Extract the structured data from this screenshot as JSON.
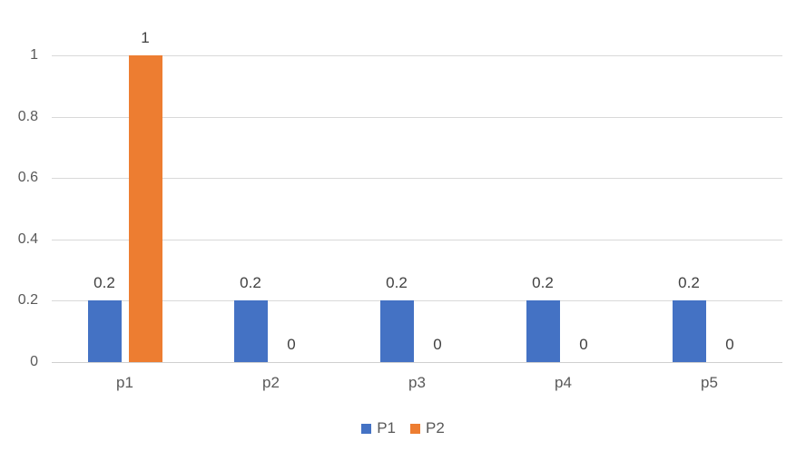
{
  "chart_data": {
    "type": "bar",
    "title": "",
    "xlabel": "",
    "ylabel": "",
    "categories": [
      "p1",
      "p2",
      "p3",
      "p4",
      "p5"
    ],
    "series": [
      {
        "name": "P1",
        "color": "#4472C4",
        "values": [
          0.2,
          0.2,
          0.2,
          0.2,
          0.2
        ],
        "data_labels": [
          "0.2",
          "0.2",
          "0.2",
          "0.2",
          "0.2"
        ]
      },
      {
        "name": "P2",
        "color": "#ED7D31",
        "values": [
          1,
          0,
          0,
          0,
          0
        ],
        "data_labels": [
          "1",
          "0",
          "0",
          "0",
          "0"
        ]
      }
    ],
    "ylim": [
      0,
      1
    ],
    "ytick_interval": 0.2,
    "yticks": [
      "0",
      "0.2",
      "0.4",
      "0.6",
      "0.8",
      "1"
    ],
    "grid": true,
    "legend_position": "bottom",
    "colors": {
      "background": "#FFFFFF",
      "gridline": "#D9D9D9",
      "tick_label": "#595959",
      "data_label": "#404040"
    }
  }
}
